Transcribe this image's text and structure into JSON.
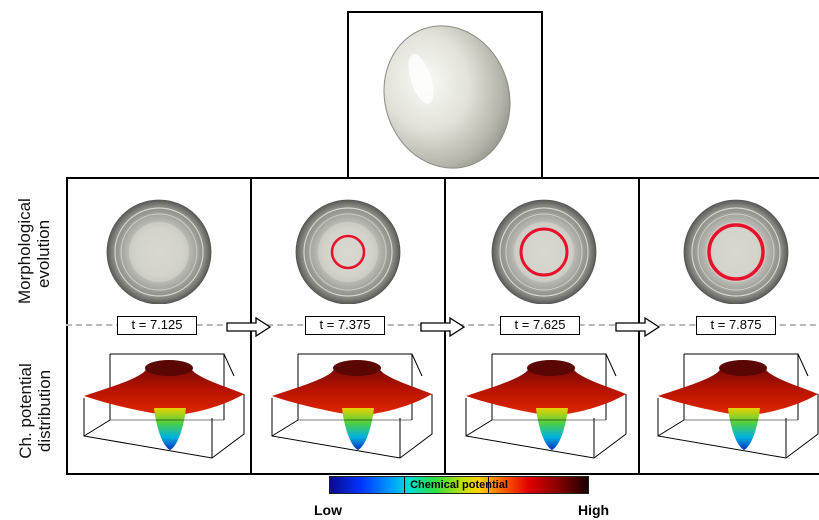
{
  "row_labels": {
    "morphological": "Morphological evolution",
    "chemical": "Ch. potential distribution"
  },
  "frames": [
    {
      "time_label": "t = 7.125",
      "ring": false
    },
    {
      "time_label": "t = 7.375",
      "ring": true
    },
    {
      "time_label": "t = 7.625",
      "ring": true
    },
    {
      "time_label": "t = 7.875",
      "ring": true
    }
  ],
  "colorbar": {
    "title": "Chemical potential",
    "low_label": "Low",
    "high_label": "High",
    "colors": [
      "#0a0a8c",
      "#00a0ff",
      "#30e040",
      "#ffd000",
      "#e00000",
      "#1a0000"
    ]
  },
  "colors": {
    "ring": "#e8102a",
    "sphere_light": "#e6e6e0",
    "sphere_dark": "#6a6a66",
    "surface_top": "#7a0a05",
    "surface_mid": "#d01a00"
  },
  "icons": [
    "right-arrow-icon"
  ]
}
